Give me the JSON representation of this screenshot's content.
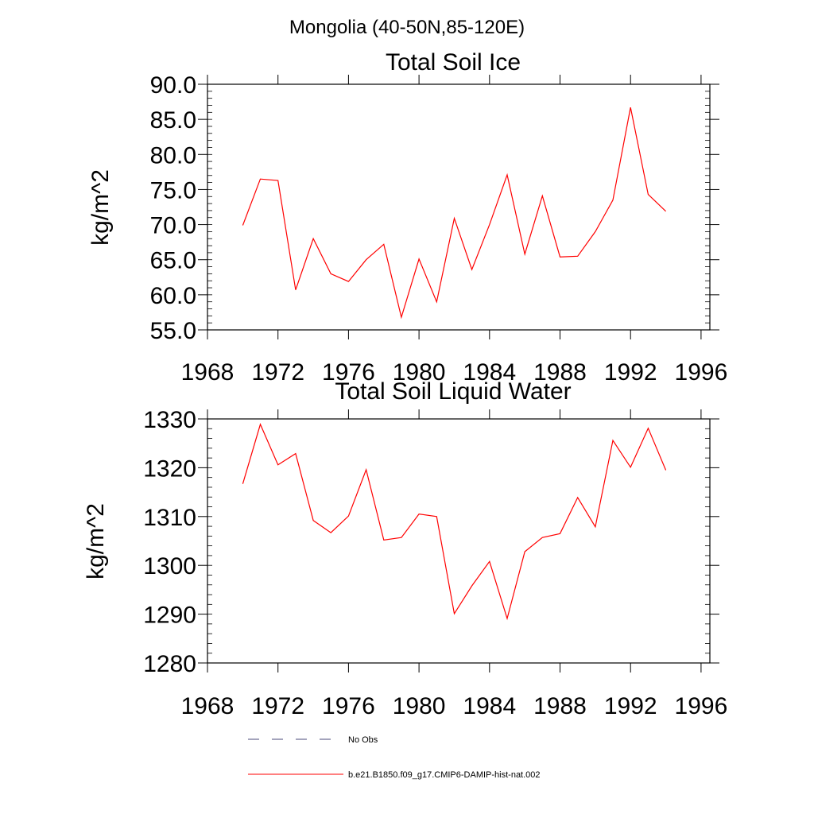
{
  "page": {
    "suptitle": "Mongolia (40-50N,85-120E)"
  },
  "colors": {
    "model": "#ff0000",
    "obs": "#4a4a7a",
    "axis": "#000000"
  },
  "legend": [
    {
      "label": "No Obs",
      "style": "dashed",
      "color": "#4a4a7a"
    },
    {
      "label": "b.e21.B1850.f09_g17.CMIP6-DAMIP-hist-nat.002",
      "style": "solid",
      "color": "#ff0000"
    }
  ],
  "chart_data": [
    {
      "type": "line",
      "title": "Total Soil Ice",
      "xlabel": "",
      "ylabel": "kg/m^2",
      "xlim": [
        1968,
        1996.5
      ],
      "ylim": [
        55,
        90
      ],
      "grid": false,
      "xticks": [
        "1968",
        "1972",
        "1976",
        "1980",
        "1984",
        "1988",
        "1992",
        "1996"
      ],
      "yticks": [
        "55.0",
        "60.0",
        "65.0",
        "70.0",
        "75.0",
        "80.0",
        "85.0",
        "90.0"
      ],
      "x": [
        1970,
        1971,
        1972,
        1973,
        1974,
        1975,
        1976,
        1977,
        1978,
        1979,
        1980,
        1981,
        1982,
        1983,
        1984,
        1985,
        1986,
        1987,
        1988,
        1989,
        1990,
        1991,
        1992,
        1993,
        1994
      ],
      "series": [
        {
          "name": "b.e21.B1850.f09_g17.CMIP6-DAMIP-hist-nat.002",
          "values": [
            69.9,
            76.5,
            76.3,
            60.7,
            68.0,
            63.0,
            61.9,
            65.0,
            67.2,
            56.8,
            65.1,
            59.0,
            70.9,
            63.6,
            70.0,
            77.1,
            65.8,
            74.1,
            65.4,
            65.5,
            69.0,
            73.5,
            86.7,
            74.3,
            71.9
          ]
        }
      ]
    },
    {
      "type": "line",
      "title": "Total Soil Liquid Water",
      "xlabel": "",
      "ylabel": "kg/m^2",
      "xlim": [
        1968,
        1996.5
      ],
      "ylim": [
        1280,
        1330
      ],
      "grid": false,
      "xticks": [
        "1968",
        "1972",
        "1976",
        "1980",
        "1984",
        "1988",
        "1992",
        "1996"
      ],
      "yticks": [
        "1280",
        "1290",
        "1300",
        "1310",
        "1320",
        "1330"
      ],
      "x": [
        1970,
        1971,
        1972,
        1973,
        1974,
        1975,
        1976,
        1977,
        1978,
        1979,
        1980,
        1981,
        1982,
        1983,
        1984,
        1985,
        1986,
        1987,
        1988,
        1989,
        1990,
        1991,
        1992,
        1993,
        1994
      ],
      "series": [
        {
          "name": "b.e21.B1850.f09_g17.CMIP6-DAMIP-hist-nat.002",
          "values": [
            1316.7,
            1328.9,
            1320.6,
            1322.9,
            1309.2,
            1306.7,
            1310.1,
            1319.6,
            1305.2,
            1305.7,
            1310.5,
            1310.0,
            1290.1,
            1295.8,
            1300.8,
            1289.1,
            1302.8,
            1305.7,
            1306.5,
            1313.9,
            1307.9,
            1325.6,
            1320.1,
            1328.1,
            1319.5
          ]
        }
      ]
    }
  ]
}
